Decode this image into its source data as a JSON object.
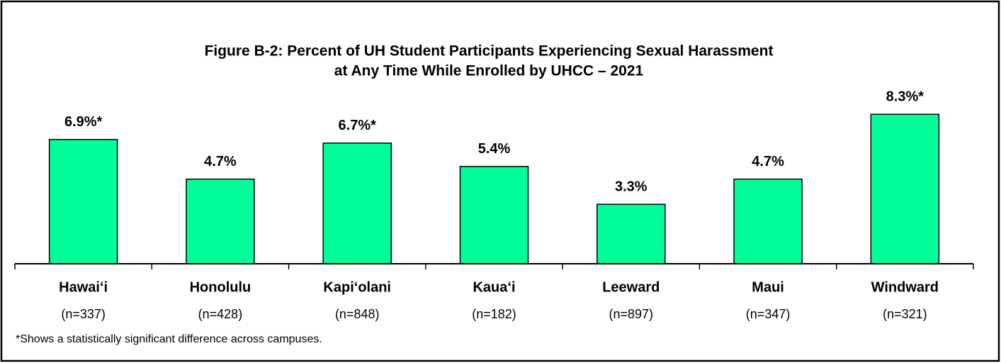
{
  "chart_data": {
    "type": "bar",
    "title": [
      "Figure B-2:  Percent of UH Student Participants Experiencing Sexual Harassment",
      "at Any Time While Enrolled by UHCC – 2021"
    ],
    "categories": [
      "Hawai‘i",
      "Honolulu",
      "Kapi‘olani",
      "Kaua‘i",
      "Leeward",
      "Maui",
      "Windward"
    ],
    "sample_sizes": [
      "(n=337)",
      "(n=428)",
      "(n=848)",
      "(n=182)",
      "(n=897)",
      "(n=347)",
      "(n=321)"
    ],
    "values": [
      6.9,
      4.7,
      6.7,
      5.4,
      3.3,
      4.7,
      8.3
    ],
    "value_labels": [
      "6.9%*",
      "4.7%",
      "6.7%*",
      "5.4%",
      "3.3%",
      "4.7%",
      "8.3%*"
    ],
    "color": "#00ff99",
    "ylim": [
      0,
      10
    ],
    "footnote": "*Shows a statistically significant difference across campuses."
  }
}
